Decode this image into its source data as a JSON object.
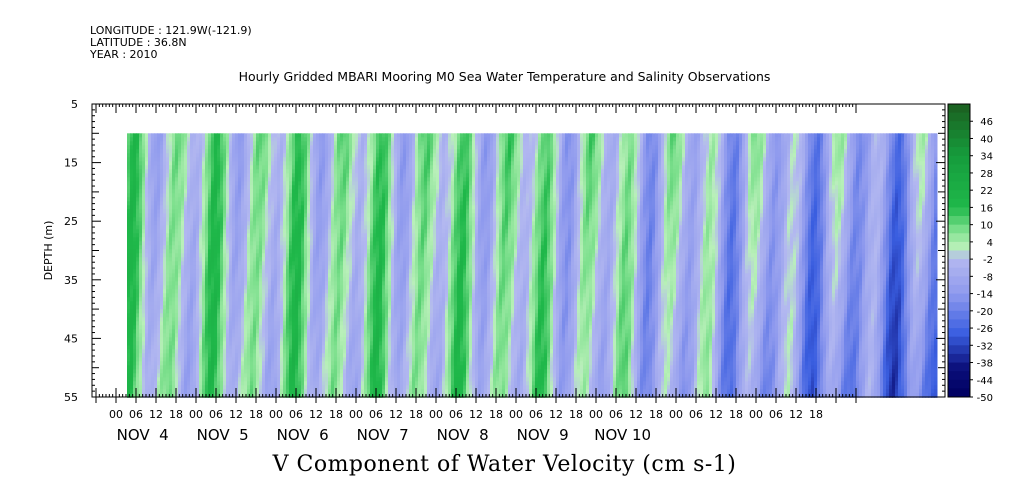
{
  "header": {
    "longitude": "LONGITUDE : 121.9W(-121.9)",
    "latitude": "LATITUDE : 36.8N",
    "year": "YEAR : 2010"
  },
  "chart_data": {
    "type": "heatmap",
    "title": "Hourly Gridded MBARI Mooring M0 Sea Water Temperature and Salinity Observations",
    "xlabel": "V Component of Water Velocity (cm s-1)",
    "ylabel": "DEPTH (m)",
    "y_ticks": [
      5,
      15,
      25,
      35,
      45,
      55
    ],
    "ylim": [
      5,
      55
    ],
    "y_inverted": true,
    "data_depth_range": [
      10,
      55
    ],
    "x_hour_ticks": [
      "00",
      "06",
      "12",
      "18",
      "00",
      "06",
      "12",
      "18",
      "00",
      "06",
      "12",
      "18",
      "00",
      "06",
      "12",
      "18",
      "00",
      "06",
      "12",
      "18",
      "00",
      "06",
      "12",
      "18",
      "00",
      "06",
      "12",
      "18",
      "00",
      "06",
      "12",
      "18",
      "00",
      "06",
      "12",
      "18"
    ],
    "x_day_labels": [
      "NOV  4",
      "NOV  5",
      "NOV  6",
      "NOV  7",
      "NOV  8",
      "NOV  9",
      "NOV 10"
    ],
    "colorbar_labels": [
      "46",
      "40",
      "34",
      "28",
      "22",
      "16",
      "10",
      "4",
      "-2",
      "-8",
      "-14",
      "-20",
      "-26",
      "-32",
      "-38",
      "-44",
      "-50"
    ],
    "colorbar_range": [
      -50,
      52
    ],
    "colorbar_step": 3,
    "colors": {
      "green_dark": "#1b5e20",
      "green_mid": "#1fb84a",
      "green_light": "#7ee08e",
      "green_pale": "#b9f0b9",
      "blue_pale": "#b3b8f0",
      "blue_light": "#8f9aee",
      "blue_mid": "#3a5ee0",
      "blue_dark": "#0b0f7a"
    }
  }
}
